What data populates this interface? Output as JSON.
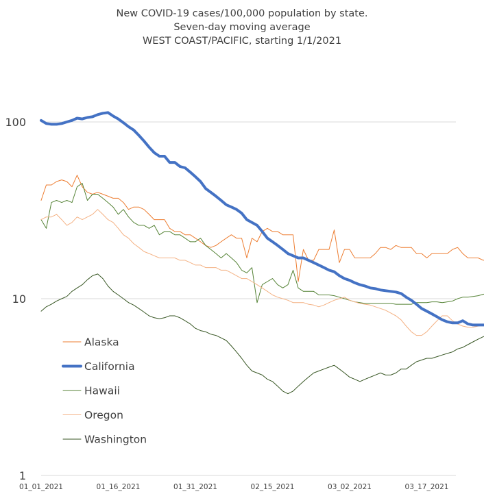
{
  "chart_data": {
    "type": "line",
    "title_lines": [
      "New COVID-19 cases/100,000 population by state.",
      "Seven-day moving average",
      "WEST COAST/PACIFIC, starting 1/1/2021"
    ],
    "xlabel": "",
    "ylabel": "",
    "y_scale": "log",
    "ylim": [
      1,
      100
    ],
    "y_ticks": [
      "1",
      "10",
      "100"
    ],
    "x_tick_labels": [
      "01_01_2021",
      "01_16_2021",
      "01_31_2021",
      "02_15_2021",
      "03_02_2021",
      "03_17_2021"
    ],
    "x_tick_days": [
      0,
      15,
      30,
      45,
      60,
      75
    ],
    "grid": true,
    "legend_position": "bottom-left",
    "series": [
      {
        "name": "Alaska",
        "color": "#ed7d31",
        "width": 1,
        "values": [
          36,
          44,
          44,
          46,
          47,
          46,
          43,
          50,
          43,
          40,
          39,
          40,
          39,
          38,
          37,
          37,
          35,
          32,
          33,
          33,
          32,
          30,
          28,
          28,
          28,
          25,
          24,
          24,
          23,
          23,
          22,
          21,
          20,
          19.5,
          20,
          21,
          22,
          23,
          22,
          22,
          17,
          22,
          21,
          24,
          25,
          24,
          24,
          23,
          23,
          23,
          12.5,
          19,
          16.5,
          16.5,
          19,
          19,
          19,
          24.5,
          16,
          19,
          19,
          17,
          17,
          17,
          17,
          18,
          19.5,
          19.5,
          19,
          20,
          19.5,
          19.5,
          19.5,
          18,
          18,
          17,
          18,
          18,
          18,
          18,
          19,
          19.5,
          18,
          17,
          17,
          17,
          16.5,
          16.5,
          18,
          18.5
        ]
      },
      {
        "name": "California",
        "color": "#4472c4",
        "width": 4,
        "values": [
          102,
          98,
          97,
          97,
          98,
          100,
          102,
          105,
          104,
          106,
          107,
          110,
          112,
          113,
          108,
          104,
          99,
          94,
          90,
          84,
          78,
          72,
          67,
          64,
          64,
          59,
          59,
          56,
          55,
          52,
          49,
          46,
          42,
          40,
          38,
          36,
          34,
          33,
          32,
          30.5,
          28,
          27,
          26,
          24,
          22,
          21,
          20,
          19,
          18,
          17.5,
          17,
          17,
          16.5,
          16,
          15.5,
          15,
          14.5,
          14.2,
          13.5,
          13,
          12.7,
          12.3,
          12,
          11.8,
          11.5,
          11.4,
          11.2,
          11.1,
          11,
          10.9,
          10.7,
          10.2,
          9.8,
          9.3,
          8.8,
          8.5,
          8.2,
          7.9,
          7.6,
          7.4,
          7.3,
          7.3,
          7.5,
          7.2,
          7.1,
          7.1,
          7.1,
          7.1,
          7.0,
          7.0
        ]
      },
      {
        "name": "Hawaii",
        "color": "#548235",
        "width": 1,
        "values": [
          28,
          25,
          35,
          36,
          35,
          36,
          35,
          43,
          45,
          36,
          39,
          39,
          37,
          35,
          33,
          30,
          32,
          29,
          27,
          26,
          26,
          25,
          26,
          23,
          24,
          24,
          23,
          23,
          22,
          21,
          21,
          22,
          20,
          19,
          18,
          17,
          18,
          17,
          16,
          14.5,
          14,
          15,
          9.5,
          12,
          12.5,
          13,
          12,
          11.5,
          12,
          14.5,
          11.5,
          11,
          11,
          11,
          10.5,
          10.5,
          10.5,
          10.4,
          10.2,
          10,
          9.8,
          9.6,
          9.5,
          9.4,
          9.4,
          9.4,
          9.4,
          9.4,
          9.4,
          9.3,
          9.3,
          9.3,
          9.3,
          9.5,
          9.5,
          9.5,
          9.6,
          9.6,
          9.5,
          9.6,
          9.7,
          10,
          10.2,
          10.2,
          10.3,
          10.4,
          10.6,
          10.7,
          10.6,
          10.6
        ]
      },
      {
        "name": "Oregon",
        "color": "#f4b183",
        "width": 1,
        "values": [
          28,
          29,
          29,
          30,
          28,
          26,
          27,
          29,
          28,
          29,
          30,
          32,
          30,
          28,
          27,
          25,
          23,
          22,
          20.5,
          19.5,
          18.5,
          18,
          17.5,
          17,
          17,
          17,
          17,
          16.5,
          16.5,
          16,
          15.5,
          15.5,
          15,
          15,
          15,
          14.5,
          14.5,
          14,
          13.5,
          13,
          13,
          12.5,
          12,
          11.5,
          11,
          10.5,
          10.2,
          10,
          9.8,
          9.5,
          9.5,
          9.5,
          9.3,
          9.2,
          9,
          9.2,
          9.5,
          9.8,
          10,
          10.2,
          9.8,
          9.6,
          9.4,
          9.3,
          9.2,
          9,
          8.8,
          8.6,
          8.3,
          8,
          7.6,
          7,
          6.5,
          6.2,
          6.2,
          6.5,
          7,
          7.5,
          8,
          8,
          7.5,
          7.2,
          7,
          6.9,
          6.9,
          7,
          7.1,
          7.2,
          7.4,
          7.5
        ]
      },
      {
        "name": "Washington",
        "color": "#375623",
        "width": 1,
        "values": [
          8.5,
          9,
          9.3,
          9.7,
          10,
          10.3,
          11,
          11.5,
          12,
          12.8,
          13.5,
          13.8,
          13,
          11.8,
          11,
          10.5,
          10,
          9.5,
          9.2,
          8.8,
          8.4,
          8,
          7.8,
          7.7,
          7.8,
          8,
          8,
          7.8,
          7.5,
          7.2,
          6.8,
          6.6,
          6.5,
          6.3,
          6.2,
          6,
          5.8,
          5.4,
          5,
          4.6,
          4.2,
          3.9,
          3.8,
          3.7,
          3.5,
          3.4,
          3.2,
          3.0,
          2.9,
          3.0,
          3.2,
          3.4,
          3.6,
          3.8,
          3.9,
          4.0,
          4.1,
          4.2,
          4.0,
          3.8,
          3.6,
          3.5,
          3.4,
          3.5,
          3.6,
          3.7,
          3.8,
          3.7,
          3.7,
          3.8,
          4.0,
          4.0,
          4.2,
          4.4,
          4.5,
          4.6,
          4.6,
          4.7,
          4.8,
          4.9,
          5.0,
          5.2,
          5.3,
          5.5,
          5.7,
          5.9,
          6.1,
          6.2,
          6.0,
          5.9
        ]
      }
    ]
  }
}
